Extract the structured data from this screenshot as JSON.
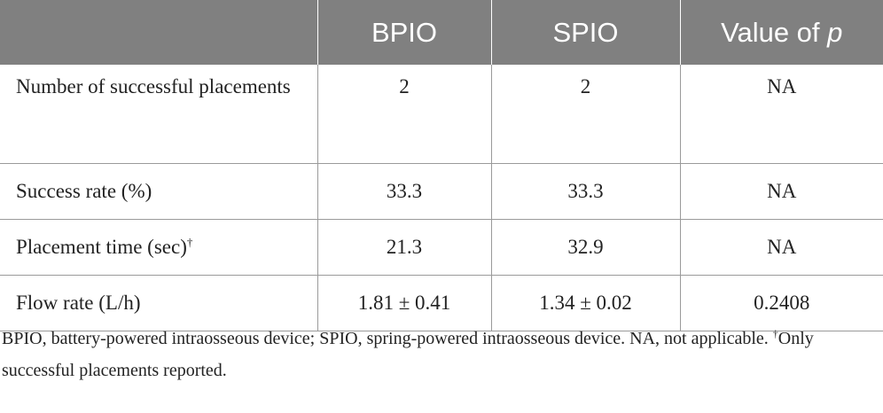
{
  "header": {
    "col1": "BPIO",
    "col2": "SPIO",
    "col3_prefix": "Value of ",
    "col3_var": "p"
  },
  "rows": [
    {
      "label": "Number of successful placements",
      "bpio": "2",
      "spio": "2",
      "p": "NA"
    },
    {
      "label": "Success rate (%)",
      "bpio": "33.3",
      "spio": "33.3",
      "p": "NA"
    },
    {
      "label": "Placement time (sec)",
      "label_mark": "†",
      "bpio": "21.3",
      "spio": "32.9",
      "p": "NA"
    },
    {
      "label": "Flow rate (L/h)",
      "bpio": "1.81 ± 0.41",
      "spio": "1.34 ± 0.02",
      "p": "0.2408"
    }
  ],
  "footnote": {
    "text": "BPIO, battery-powered intraosseous device; SPIO, spring-powered intraosseous device. NA, not applicable. ",
    "mark": "†",
    "note": "Only successful placements reported."
  }
}
